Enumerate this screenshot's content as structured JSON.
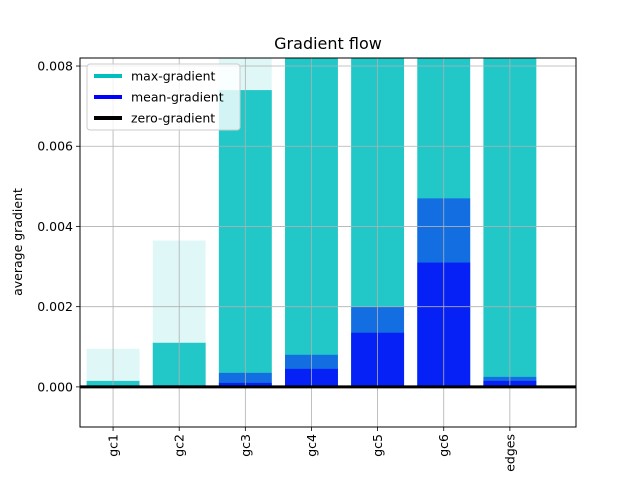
{
  "chart_data": {
    "type": "bar",
    "title": "Gradient flow",
    "xlabel": "",
    "ylabel": "average gradient",
    "categories": [
      "gc1",
      "gc2",
      "gc3",
      "gc4",
      "gc5",
      "gc6",
      "edges"
    ],
    "xlim": [
      -0.5,
      7.0
    ],
    "ylim": [
      -0.001,
      0.0082
    ],
    "yticks": [
      "0.000",
      "0.002",
      "0.004",
      "0.006",
      "0.008"
    ],
    "ytick_values": [
      0.0,
      0.002,
      0.004,
      0.006,
      0.008
    ],
    "grid": true,
    "legend_position": "upper-left",
    "series": [
      {
        "name": "max-gradient",
        "color": "#00bfbf",
        "values": [
          0.00095,
          0.00365,
          0.0082,
          0.0082,
          0.0082,
          0.0082,
          0.0082
        ],
        "core_values": [
          0.00015,
          0.0011,
          0.0074,
          0.0082,
          0.0082,
          0.0082,
          0.0082
        ]
      },
      {
        "name": "mean-gradient",
        "color": "#0000ff",
        "values": [
          2e-05,
          4e-05,
          0.00035,
          0.0008,
          0.002,
          0.0047,
          0.00025
        ],
        "core_values": [
          1e-05,
          2e-05,
          0.0001,
          0.00045,
          0.00135,
          0.0031,
          0.00015
        ]
      },
      {
        "name": "zero-gradient",
        "color": "#000000",
        "values": [
          0,
          0,
          0,
          0,
          0,
          0,
          0
        ]
      }
    ]
  }
}
